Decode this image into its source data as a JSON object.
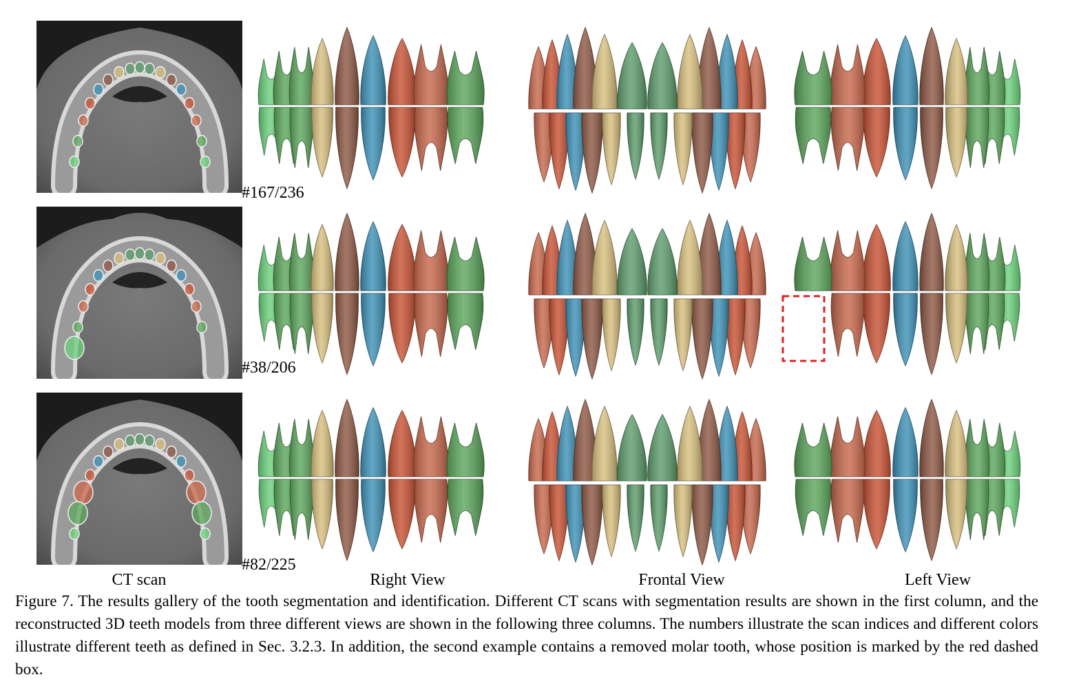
{
  "figure": {
    "rows": [
      {
        "scan_index": "#167/236",
        "missing_tooth": false
      },
      {
        "scan_index": "#38/206",
        "missing_tooth": true
      },
      {
        "scan_index": "#82/225",
        "missing_tooth": false
      }
    ],
    "column_labels": {
      "ct_scan": "CT scan",
      "right_view": "Right View",
      "frontal_view": "Frontal View",
      "left_view": "Left View"
    },
    "caption": "Figure 7. The results gallery of the tooth segmentation and identification. Different CT scans with segmentation results are shown in the first column, and the reconstructed 3D teeth models from three different views are shown in the following three columns. The numbers illustrate the scan indices and different colors illustrate different teeth as defined in Sec. 3.2.3. In addition, the second example contains a removed molar tooth, whose position is marked by the red dashed box.",
    "tooth_colors": {
      "incisor_central": "#5f9e6e",
      "incisor_lateral": "#d9c07f",
      "canine": "#8f5a46",
      "premolar_1": "#3f93b8",
      "premolar_2": "#c95436",
      "molar_1": "#c96a4e",
      "molar_2": "#5ea85e",
      "molar_3": "#6ed27e"
    },
    "missing_marker_color": "#e02020"
  }
}
